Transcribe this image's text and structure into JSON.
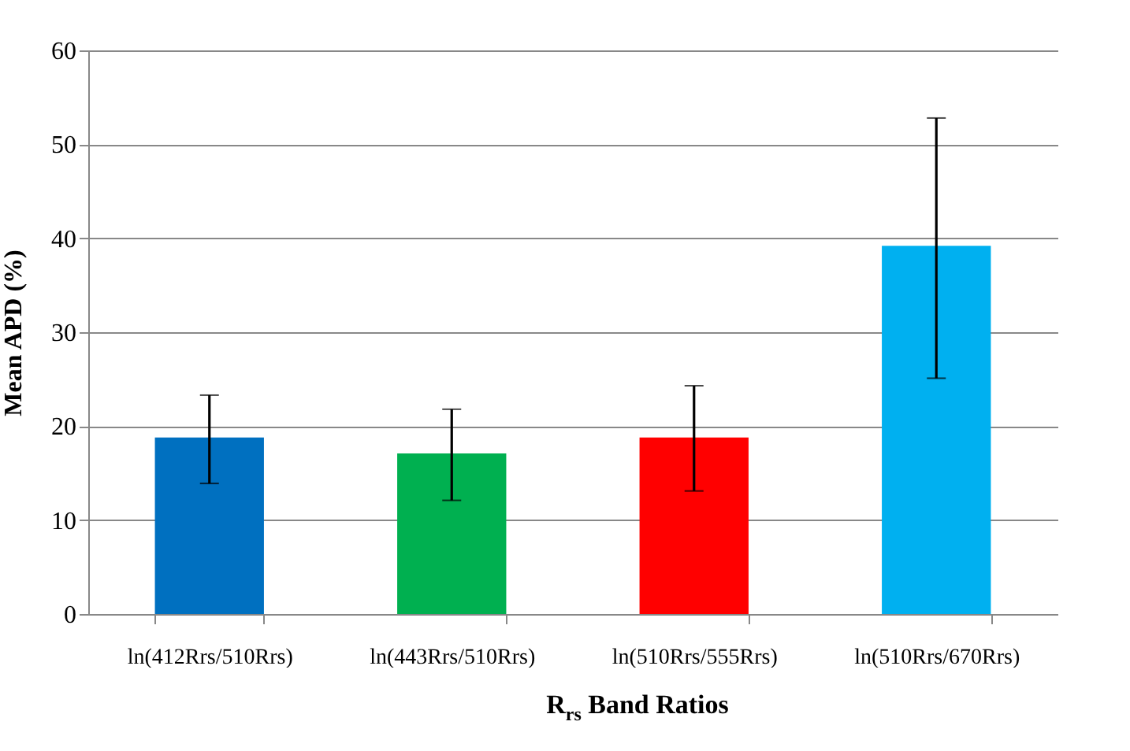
{
  "chart_data": {
    "type": "bar",
    "ylabel": "Mean APD (%)",
    "xlabel": "R$_{rs}$ Band Ratios",
    "categories": [
      "ln(412Rrs/510Rrs)",
      "ln(443Rrs/510Rrs)",
      "ln(510Rrs/555Rrs)",
      "ln(510Rrs/670Rrs)"
    ],
    "values": [
      18.8,
      17.1,
      18.8,
      39.2
    ],
    "colors": [
      "#0070c0",
      "#00b050",
      "#ff0000",
      "#00b0f0"
    ],
    "errors": [
      [
        13.9,
        23.3
      ],
      [
        12.1,
        21.8
      ],
      [
        13.1,
        24.3
      ],
      [
        25.1,
        52.8
      ]
    ],
    "ylim": [
      0,
      60
    ],
    "yticks": [
      0,
      10,
      20,
      30,
      40,
      50,
      60
    ],
    "grid": "y"
  }
}
